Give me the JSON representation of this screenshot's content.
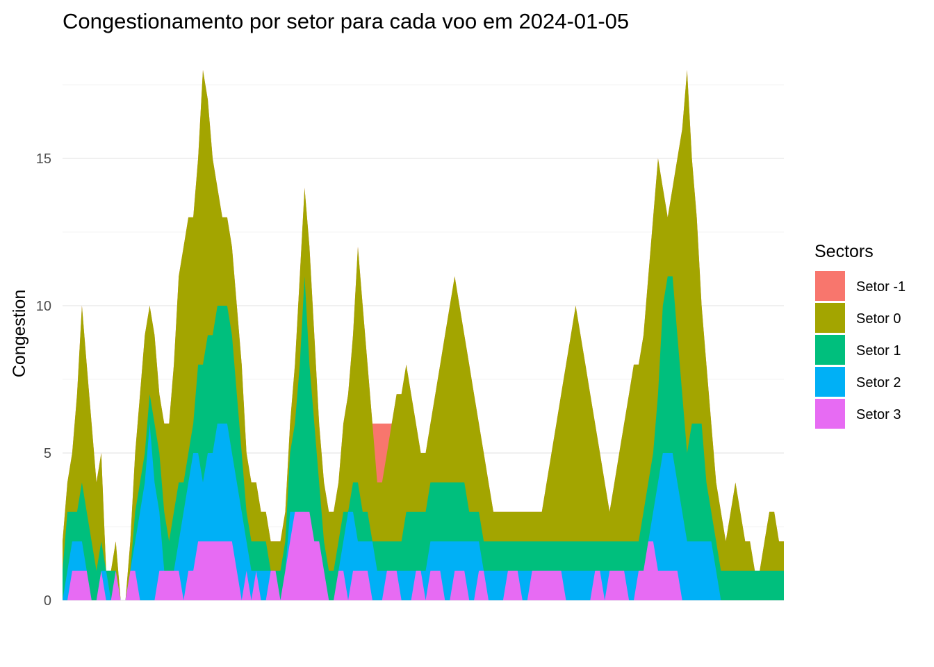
{
  "chart_data": {
    "type": "area",
    "stacked": true,
    "title": "Congestionamento por setor para cada voo em 2024-01-05",
    "xlabel": "",
    "ylabel": "Congestion",
    "ylim": [
      0,
      18
    ],
    "yticks": [
      0,
      5,
      10,
      15
    ],
    "x_ticks_shown": false,
    "grid": true,
    "legend": {
      "title": "Sectors",
      "position": "right",
      "entries": [
        "Setor -1",
        "Setor 0",
        "Setor 1",
        "Setor 2",
        "Setor 3"
      ]
    },
    "series": [
      {
        "name": "Setor -1",
        "color": "#F8766D"
      },
      {
        "name": "Setor 0",
        "color": "#A3A500"
      },
      {
        "name": "Setor 1",
        "color": "#00BF7D"
      },
      {
        "name": "Setor 2",
        "color": "#00B0F6"
      },
      {
        "name": "Setor 3",
        "color": "#E76BF3"
      }
    ],
    "x": [
      1,
      5,
      9,
      13,
      17,
      21,
      25,
      29,
      33,
      37,
      41,
      45,
      49,
      53,
      57,
      61,
      65,
      69,
      73,
      77,
      81,
      85,
      89,
      93,
      97,
      101,
      105,
      109,
      113,
      117,
      121,
      125,
      129,
      133,
      137,
      141,
      145,
      149,
      153,
      157,
      161,
      165,
      169,
      173,
      177,
      181,
      185,
      189,
      193,
      197,
      201,
      205,
      209,
      213,
      217,
      221,
      225,
      229,
      233,
      237,
      241,
      245,
      249,
      253,
      257,
      261,
      265,
      269,
      273,
      277,
      281,
      285,
      289,
      293,
      297,
      301,
      305,
      309,
      313,
      317,
      321,
      325,
      329,
      333,
      337,
      341,
      345,
      349,
      353,
      357,
      361,
      365,
      369,
      373,
      377,
      381,
      385,
      389,
      393,
      397,
      401,
      405,
      409,
      413,
      417,
      421,
      425,
      429,
      433,
      437,
      441,
      445,
      449,
      453,
      457,
      461,
      465,
      469,
      473,
      477,
      481,
      485,
      489,
      493,
      497,
      501,
      505,
      509,
      513,
      517,
      521,
      525,
      529,
      533,
      537,
      541,
      545,
      549,
      553,
      557,
      561,
      565,
      569,
      573,
      577,
      581,
      585,
      589,
      593,
      597
    ],
    "cumulative": {
      "Setor 3": [
        0,
        0,
        1,
        1,
        1,
        1,
        0,
        0,
        1,
        0,
        0,
        1,
        0,
        0,
        1,
        1,
        0,
        0,
        0,
        0,
        1,
        1,
        1,
        1,
        1,
        0,
        1,
        1,
        2,
        2,
        2,
        2,
        2,
        2,
        2,
        2,
        1,
        0,
        1,
        0,
        1,
        0,
        0,
        1,
        1,
        0,
        1,
        2,
        3,
        3,
        3,
        3,
        2,
        2,
        1,
        0,
        0,
        1,
        1,
        0,
        1,
        1,
        1,
        1,
        0,
        0,
        0,
        1,
        1,
        1,
        0,
        0,
        0,
        1,
        1,
        0,
        1,
        1,
        1,
        0,
        0,
        1,
        1,
        1,
        0,
        0,
        1,
        1,
        0,
        0,
        0,
        0,
        1,
        1,
        1,
        0,
        0,
        1,
        1,
        1,
        1,
        1,
        1,
        1,
        0,
        0,
        0,
        0,
        0,
        0,
        1,
        1,
        0,
        1,
        1,
        1,
        1,
        0,
        0,
        1,
        1,
        2,
        2,
        1,
        1,
        1,
        1,
        1,
        0,
        0,
        0,
        0,
        0,
        0,
        0,
        0,
        0,
        0,
        0,
        0,
        0,
        0,
        0,
        0,
        0,
        0,
        0,
        0,
        0,
        0
      ],
      "Setor 2": [
        0,
        1,
        2,
        2,
        2,
        1,
        0,
        0,
        1,
        1,
        0,
        1,
        0,
        0,
        1,
        2,
        3,
        4,
        6,
        4,
        3,
        1,
        0,
        1,
        2,
        3,
        4,
        5,
        5,
        4,
        5,
        5,
        6,
        6,
        6,
        5,
        4,
        3,
        2,
        1,
        1,
        1,
        1,
        1,
        1,
        0,
        1,
        3,
        3,
        3,
        3,
        2,
        2,
        2,
        1,
        0,
        0,
        1,
        2,
        3,
        3,
        2,
        2,
        2,
        2,
        1,
        1,
        1,
        1,
        1,
        1,
        1,
        1,
        1,
        1,
        1,
        2,
        2,
        2,
        2,
        2,
        2,
        2,
        2,
        2,
        2,
        2,
        1,
        1,
        1,
        1,
        1,
        1,
        1,
        1,
        1,
        1,
        1,
        1,
        1,
        1,
        1,
        1,
        1,
        1,
        1,
        1,
        1,
        1,
        1,
        1,
        1,
        1,
        1,
        1,
        1,
        1,
        1,
        1,
        1,
        1,
        2,
        3,
        4,
        5,
        5,
        5,
        4,
        3,
        2,
        2,
        2,
        2,
        2,
        2,
        1,
        0,
        0,
        0,
        0,
        0,
        0,
        0,
        0,
        0,
        0,
        0,
        0,
        0,
        0
      ],
      "Setor 1": [
        1,
        3,
        3,
        3,
        4,
        3,
        2,
        1,
        2,
        1,
        1,
        1,
        0,
        0,
        1,
        3,
        4,
        5,
        7,
        6,
        5,
        3,
        2,
        3,
        4,
        4,
        5,
        6,
        8,
        8,
        9,
        9,
        10,
        10,
        10,
        9,
        7,
        5,
        3,
        2,
        2,
        2,
        2,
        1,
        1,
        1,
        2,
        5,
        6,
        8,
        11,
        8,
        6,
        4,
        2,
        1,
        1,
        2,
        3,
        3,
        4,
        4,
        3,
        3,
        2,
        2,
        2,
        2,
        2,
        2,
        2,
        3,
        3,
        3,
        3,
        3,
        4,
        4,
        4,
        4,
        4,
        4,
        4,
        4,
        3,
        3,
        3,
        2,
        2,
        2,
        2,
        2,
        2,
        2,
        2,
        2,
        2,
        2,
        2,
        2,
        2,
        2,
        2,
        2,
        2,
        2,
        2,
        2,
        2,
        2,
        2,
        2,
        2,
        2,
        2,
        2,
        2,
        2,
        2,
        2,
        3,
        4,
        5,
        7,
        10,
        11,
        11,
        9,
        7,
        5,
        6,
        6,
        6,
        4,
        3,
        2,
        1,
        1,
        1,
        1,
        1,
        1,
        1,
        1,
        1,
        1,
        1,
        1,
        1,
        1
      ],
      "Setor 0": [
        2,
        4,
        5,
        7,
        10,
        8,
        6,
        4,
        5,
        1,
        1,
        2,
        0,
        0,
        2,
        5,
        7,
        9,
        10,
        9,
        7,
        6,
        6,
        8,
        11,
        12,
        13,
        13,
        15,
        18,
        17,
        15,
        14,
        13,
        13,
        12,
        10,
        8,
        5,
        4,
        4,
        3,
        3,
        2,
        2,
        2,
        3,
        6,
        8,
        11,
        14,
        12,
        9,
        6,
        4,
        3,
        3,
        4,
        6,
        7,
        9,
        12,
        10,
        8,
        6,
        4,
        4,
        5,
        6,
        7,
        7,
        8,
        7,
        6,
        5,
        5,
        6,
        7,
        8,
        9,
        10,
        11,
        10,
        9,
        8,
        7,
        6,
        5,
        4,
        3,
        3,
        3,
        3,
        3,
        3,
        3,
        3,
        3,
        3,
        3,
        4,
        5,
        6,
        7,
        8,
        9,
        10,
        9,
        8,
        7,
        6,
        5,
        4,
        3,
        4,
        5,
        6,
        7,
        8,
        8,
        9,
        11,
        13,
        15,
        14,
        13,
        14,
        15,
        16,
        18,
        15,
        13,
        10,
        8,
        6,
        4,
        3,
        2,
        3,
        4,
        3,
        2,
        2,
        1,
        1,
        2,
        3,
        3,
        2,
        2
      ],
      "Setor -1": [
        2,
        4,
        5,
        7,
        10,
        8,
        6,
        4,
        5,
        1,
        1,
        2,
        0,
        0,
        2,
        5,
        7,
        9,
        10,
        9,
        7,
        6,
        6,
        8,
        11,
        12,
        13,
        13,
        15,
        18,
        17,
        15,
        14,
        13,
        13,
        12,
        10,
        8,
        5,
        4,
        4,
        3,
        3,
        2,
        2,
        2,
        3,
        6,
        8,
        11,
        14,
        12,
        9,
        6,
        4,
        3,
        3,
        4,
        6,
        7,
        9,
        12,
        10,
        8,
        6,
        6,
        6,
        6,
        6,
        7,
        7,
        8,
        7,
        6,
        5,
        5,
        6,
        7,
        8,
        9,
        10,
        11,
        10,
        9,
        8,
        7,
        6,
        5,
        4,
        3,
        3,
        3,
        3,
        3,
        3,
        3,
        3,
        3,
        3,
        3,
        4,
        5,
        6,
        7,
        8,
        9,
        10,
        9,
        8,
        7,
        6,
        5,
        4,
        3,
        4,
        5,
        6,
        7,
        8,
        8,
        9,
        11,
        13,
        15,
        14,
        13,
        14,
        15,
        16,
        18,
        15,
        13,
        10,
        8,
        6,
        4,
        3,
        2,
        3,
        4,
        3,
        2,
        2,
        1,
        1,
        2,
        3,
        3,
        2,
        2
      ]
    }
  }
}
